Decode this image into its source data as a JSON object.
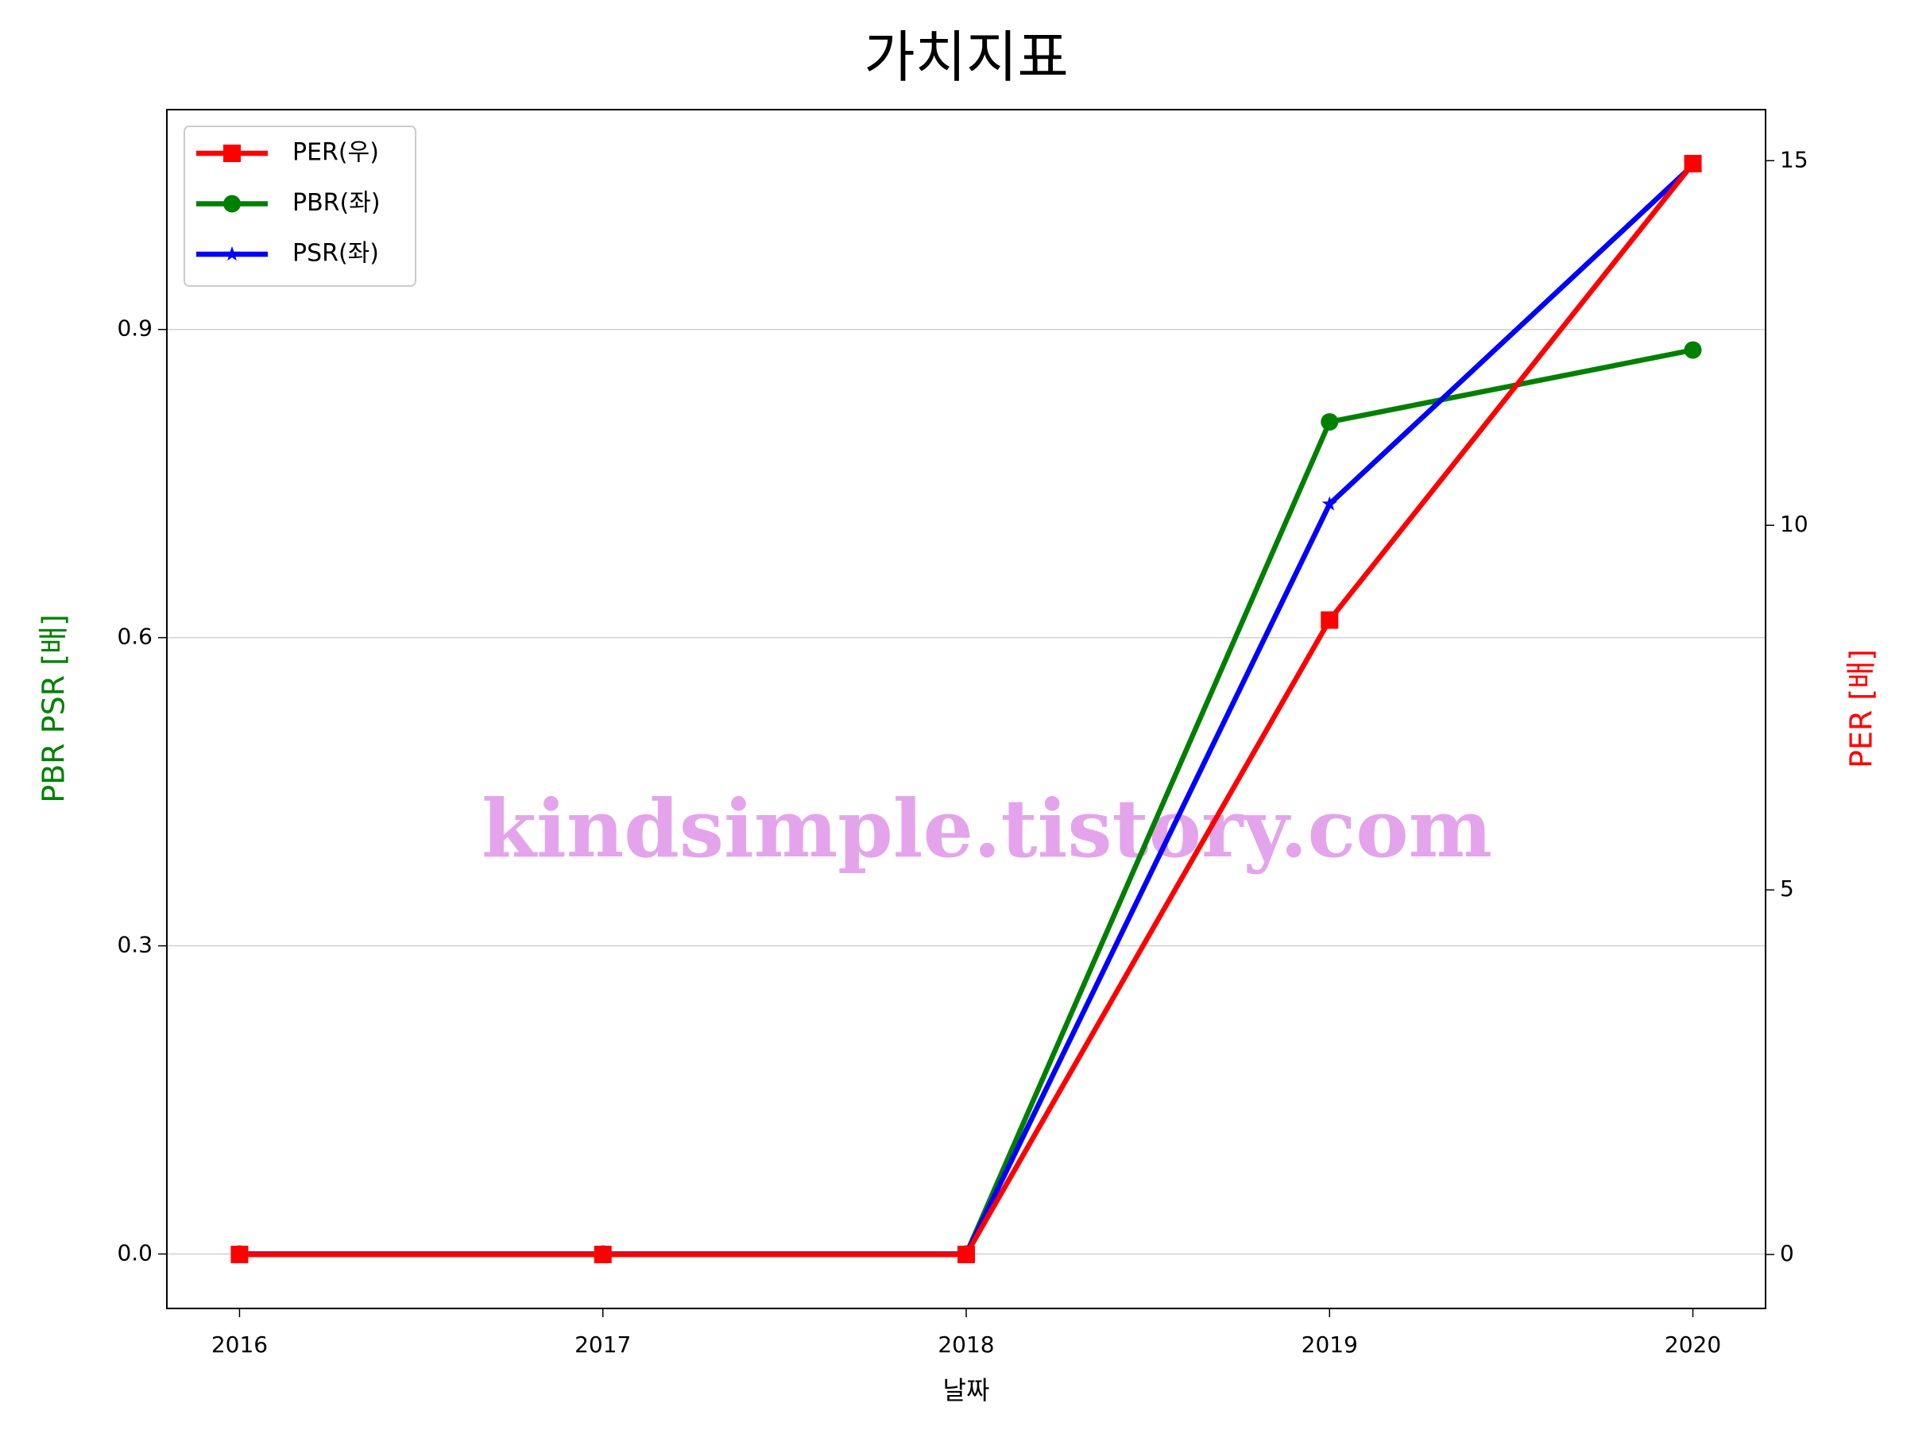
{
  "chart_data": {
    "type": "line",
    "title": "가치지표",
    "x_label": "날짜",
    "y_label": "PBR PSR [배]",
    "y2_label": "PER [배]",
    "annotation": "kindsimple.tistory.com",
    "x": [
      2016,
      2017,
      2018,
      2019,
      2020
    ],
    "xlim": [
      2015.8,
      2020.2
    ],
    "xticks": [
      2016,
      2017,
      2018,
      2019,
      2020
    ],
    "ylim": [
      -0.053,
      1.114
    ],
    "yticks": [
      {
        "value": 0,
        "label": "0.0"
      },
      0.3,
      0.6,
      0.9
    ],
    "y2lim": [
      -0.74,
      15.7
    ],
    "y2ticks": [
      0,
      5,
      10,
      15
    ],
    "grid": true,
    "legend": "upper left",
    "series": [
      {
        "name": "PER(우)",
        "color": "#ff0000",
        "marker": "square",
        "axis": "y2",
        "values": [
          0,
          0,
          0,
          8.7,
          14.96
        ]
      },
      {
        "name": "PBR(좌)",
        "color": "#008000",
        "marker": "circle",
        "values": [
          0,
          0,
          0,
          0.81,
          0.88
        ]
      },
      {
        "name": "PSR(좌)",
        "color": "#0000ff",
        "marker": "star",
        "values": [
          0,
          0,
          0,
          0.73,
          1.06
        ]
      }
    ]
  }
}
